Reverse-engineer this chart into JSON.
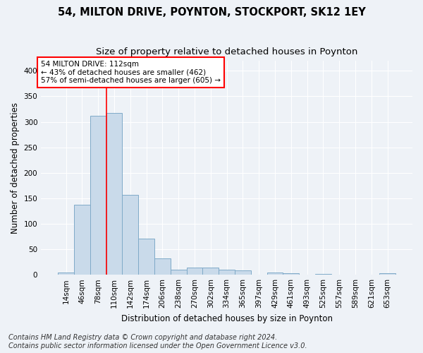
{
  "title1": "54, MILTON DRIVE, POYNTON, STOCKPORT, SK12 1EY",
  "title2": "Size of property relative to detached houses in Poynton",
  "xlabel": "Distribution of detached houses by size in Poynton",
  "ylabel": "Number of detached properties",
  "footnote1": "Contains HM Land Registry data © Crown copyright and database right 2024.",
  "footnote2": "Contains public sector information licensed under the Open Government Licence v3.0.",
  "bar_labels": [
    "14sqm",
    "46sqm",
    "78sqm",
    "110sqm",
    "142sqm",
    "174sqm",
    "206sqm",
    "238sqm",
    "270sqm",
    "302sqm",
    "334sqm",
    "365sqm",
    "397sqm",
    "429sqm",
    "461sqm",
    "493sqm",
    "525sqm",
    "557sqm",
    "589sqm",
    "621sqm",
    "653sqm"
  ],
  "bar_values": [
    4,
    137,
    312,
    317,
    157,
    71,
    32,
    10,
    14,
    14,
    10,
    8,
    0,
    5,
    3,
    0,
    2,
    0,
    0,
    0,
    3
  ],
  "bar_color": "#c9daea",
  "bar_edge_color": "#7faac8",
  "red_line_x": 2.5,
  "annotation_text": "54 MILTON DRIVE: 112sqm\n← 43% of detached houses are smaller (462)\n57% of semi-detached houses are larger (605) →",
  "annotation_box_color": "white",
  "annotation_box_edge": "red",
  "red_line_color": "red",
  "ylim": [
    0,
    420
  ],
  "yticks": [
    0,
    50,
    100,
    150,
    200,
    250,
    300,
    350,
    400
  ],
  "background_color": "#eef2f7",
  "grid_color": "white",
  "title_fontsize": 10.5,
  "subtitle_fontsize": 9.5,
  "axis_label_fontsize": 8.5,
  "tick_fontsize": 7.5,
  "footnote_fontsize": 7
}
